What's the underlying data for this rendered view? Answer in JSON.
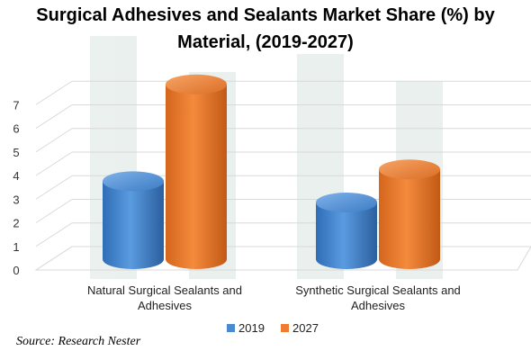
{
  "chart_data": {
    "type": "bar",
    "title_lines": [
      "Surgical Adhesives and Sealants Market Share (%) by",
      "Material, (2019-2027)"
    ],
    "categories_lines": [
      [
        "Natural Surgical Sealants and",
        "Adhesives"
      ],
      [
        "Synthetic Surgical Sealants and",
        "Adhesives"
      ]
    ],
    "series": [
      {
        "name": "2019",
        "values": [
          3.3,
          2.4
        ],
        "color": "#4a8ad0"
      },
      {
        "name": "2027",
        "values": [
          7.4,
          3.8
        ],
        "color": "#ed7d31"
      }
    ],
    "yticks": [
      0,
      1,
      2,
      3,
      4,
      5,
      6,
      7
    ],
    "ylim": [
      0,
      8
    ],
    "grid": true,
    "legend_position": "bottom",
    "source": "Source: Research Nester"
  }
}
